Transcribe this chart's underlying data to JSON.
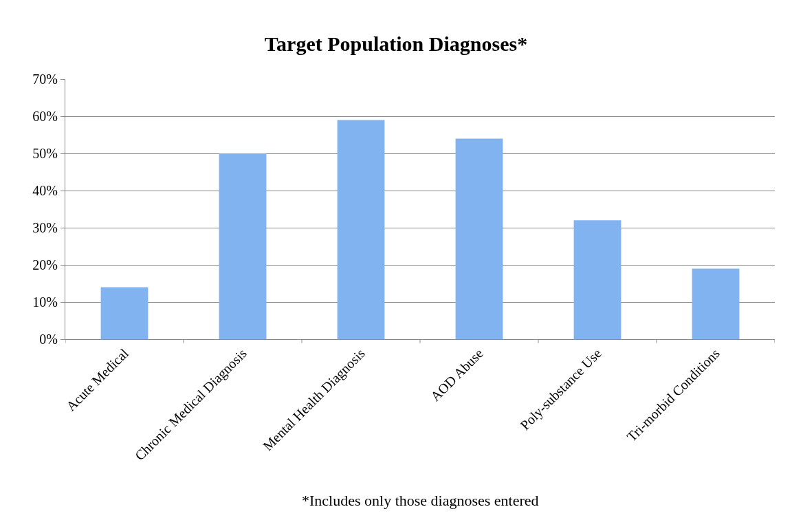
{
  "chart_data": {
    "type": "bar",
    "title": "Target Population Diagnoses*",
    "categories": [
      "Acute Medical",
      "Chronic Medical Diagnosis",
      "Mental Health Diagnosis",
      "AOD Abuse",
      "Poly-substance Use",
      "Tri-morbid Conditions"
    ],
    "values": [
      14,
      50,
      59,
      54,
      32,
      19
    ],
    "color": "#80b3ef",
    "ylim": [
      0,
      70
    ],
    "yticks": [
      {
        "value": 0,
        "label": "0%"
      },
      {
        "value": 10,
        "label": "10%"
      },
      {
        "value": 20,
        "label": "20%"
      },
      {
        "value": 30,
        "label": "30%"
      },
      {
        "value": 40,
        "label": "40%"
      },
      {
        "value": 50,
        "label": "50%"
      },
      {
        "value": 60,
        "label": "60%"
      },
      {
        "value": 70,
        "label": "70%"
      }
    ],
    "grid": "y",
    "annotations": [
      "*Includes only those diagnoses entered"
    ]
  }
}
